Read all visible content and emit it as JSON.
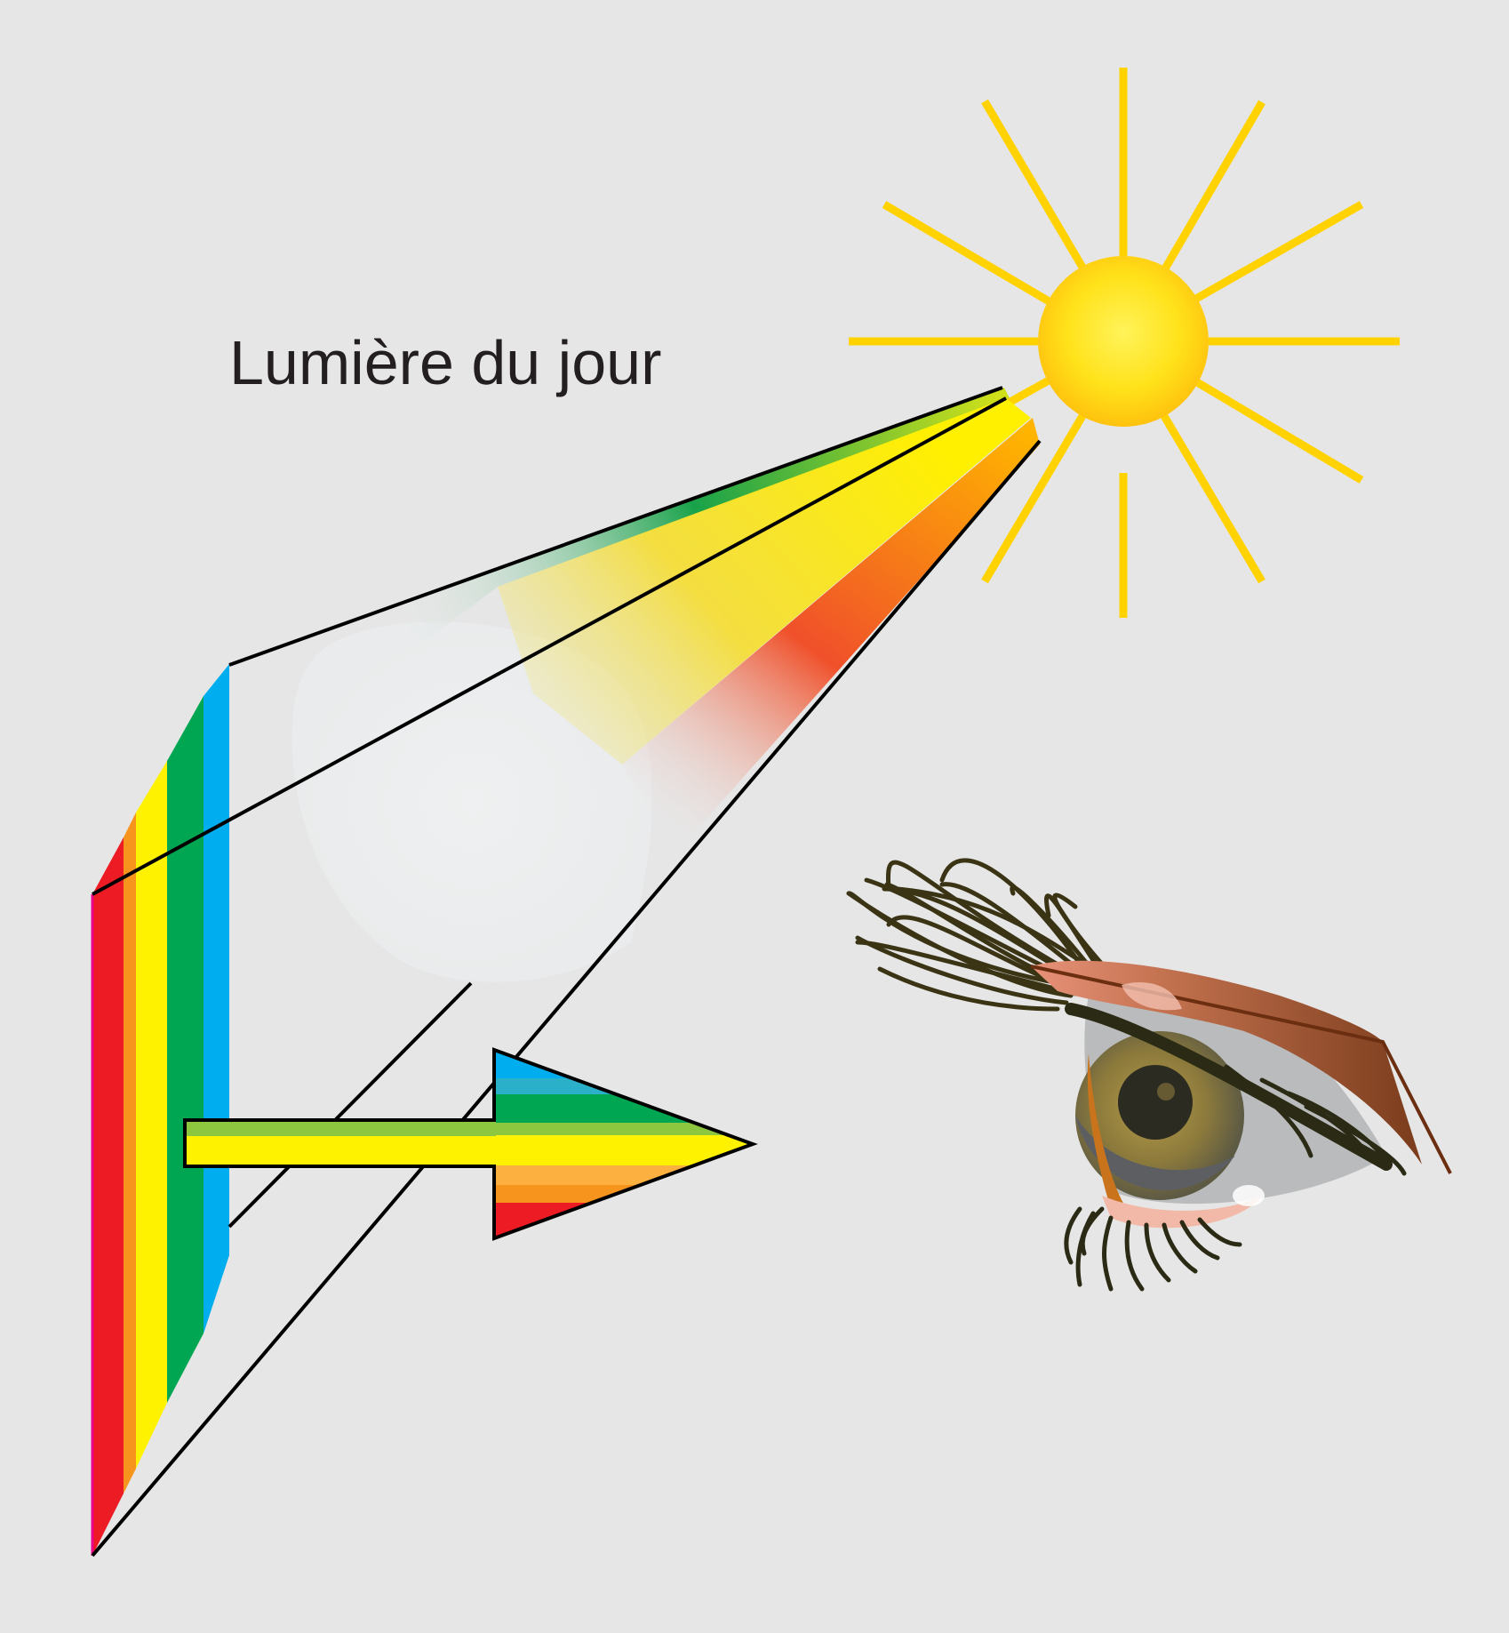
{
  "caption": "Lumière du jour",
  "icons": {
    "sun": "sun-icon",
    "eye": "eye-icon",
    "arrow": "rainbow-arrow-icon"
  },
  "colors": {
    "background": "#e6e6e6",
    "sun_core": "#ffd21f",
    "sun_rays": "#ffd200",
    "outline": "#000000",
    "spectrum_red": "#ed1c24",
    "spectrum_orange": "#f7941d",
    "spectrum_yellow": "#fff200",
    "spectrum_green": "#00a651",
    "spectrum_blue": "#00aeef",
    "eyelid": "#8b4a28",
    "iris": "#8c7a3c"
  }
}
